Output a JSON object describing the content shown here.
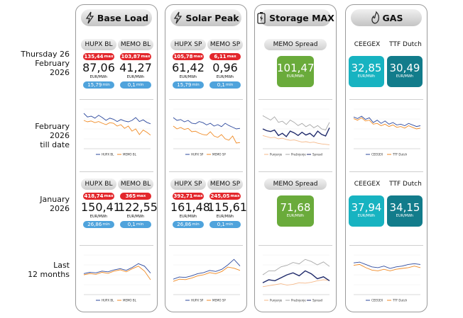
{
  "row_labels": [
    [
      "Thursday 26",
      "February",
      "2026"
    ],
    [
      "February",
      "2026",
      "till date"
    ],
    [
      "January",
      "2026"
    ],
    [
      "Last",
      "12 months"
    ]
  ],
  "panels": [
    {
      "title": "Base Load",
      "kind": "prices",
      "daily": {
        "markets": [
          {
            "name": "HUPX BL",
            "max": "135,44",
            "max_label": "max",
            "value": "87,06",
            "unit": "EUR/MWh",
            "min": "15,79",
            "min_label": "min"
          },
          {
            "name": "MEMO BL",
            "max": "103,87",
            "max_label": "max",
            "value": "41,27",
            "unit": "EUR/MWh",
            "min": "0,1",
            "min_label": "min"
          }
        ]
      },
      "month_chart": {
        "type": "line",
        "ylim": [
          0,
          140
        ],
        "series": [
          {
            "name": "HUPX BL",
            "color": "#2e4a9e",
            "values": [
              125,
              112,
              115,
              108,
              118,
              110,
              100,
              108,
              104,
              96,
              103,
              98,
              95,
              100,
              110,
              96,
              102,
              93,
              88
            ]
          },
          {
            "name": "MEMO BL",
            "color": "#f08a24",
            "values": [
              100,
              95,
              98,
              92,
              96,
              90,
              85,
              92,
              90,
              80,
              85,
              72,
              80,
              62,
              70,
              50,
              66,
              58,
              48
            ]
          }
        ]
      },
      "monthly": {
        "markets": [
          {
            "name": "HUPX BL",
            "max": "418,74",
            "max_label": "max",
            "value": "150,41",
            "unit": "EUR/MWh",
            "min": "26,86",
            "min_label": "min"
          },
          {
            "name": "MEMO BL",
            "max": "365",
            "max_label": "max",
            "value": "122,55",
            "unit": "EUR/MWh",
            "min": "0,1",
            "min_label": "min"
          }
        ]
      },
      "year_chart": {
        "type": "line",
        "ylim": [
          0,
          160
        ],
        "series": [
          {
            "name": "HUPX BL",
            "color": "#2e4a9e",
            "values": [
              85,
              90,
              88,
              95,
              92,
              100,
              105,
              98,
              110,
              125,
              115,
              87
            ]
          },
          {
            "name": "MEMO BL",
            "color": "#f08a24",
            "values": [
              80,
              85,
              82,
              90,
              86,
              95,
              100,
              92,
              105,
              115,
              95,
              60
            ]
          }
        ]
      }
    },
    {
      "title": "Solar Peak",
      "kind": "prices",
      "daily": {
        "markets": [
          {
            "name": "HUPX SP",
            "max": "105,78",
            "max_label": "max",
            "value": "61,42",
            "unit": "EUR/MWh",
            "min": "15,79",
            "min_label": "min"
          },
          {
            "name": "MEMO SP",
            "max": "6,11",
            "max_label": "max",
            "value": "0,96",
            "unit": "EUR/MWh",
            "min": "0,1",
            "min_label": "min"
          }
        ]
      },
      "month_chart": {
        "type": "line",
        "ylim": [
          0,
          140
        ],
        "series": [
          {
            "name": "HUPX SP",
            "color": "#2e4a9e",
            "values": [
              110,
              100,
              103,
              95,
              100,
              90,
              88,
              96,
              92,
              84,
              90,
              80,
              85,
              78,
              90,
              82,
              76,
              70,
              72
            ]
          },
          {
            "name": "MEMO SP",
            "color": "#f08a24",
            "values": [
              80,
              70,
              75,
              68,
              72,
              60,
              62,
              55,
              50,
              48,
              60,
              45,
              40,
              50,
              35,
              30,
              45,
              20,
              22
            ]
          }
        ]
      },
      "monthly": {
        "markets": [
          {
            "name": "HUPX SP",
            "max": "392,71",
            "max_label": "max",
            "value": "161,48",
            "unit": "EUR/MWh",
            "min": "26,86",
            "min_label": "min"
          },
          {
            "name": "MEMO SP",
            "max": "245,05",
            "max_label": "max",
            "value": "115,61",
            "unit": "EUR/MWh",
            "min": "0,1",
            "min_label": "min"
          }
        ]
      },
      "year_chart": {
        "type": "line",
        "ylim": [
          0,
          180
        ],
        "series": [
          {
            "name": "HUPX SP",
            "color": "#2e4a9e",
            "values": [
              70,
              80,
              78,
              85,
              95,
              100,
              110,
              105,
              115,
              135,
              160,
              130
            ]
          },
          {
            "name": "MEMO SP",
            "color": "#f08a24",
            "values": [
              60,
              70,
              68,
              75,
              85,
              90,
              100,
              95,
              105,
              125,
              120,
              110
            ]
          }
        ]
      }
    },
    {
      "title": "Storage MAX",
      "kind": "spread",
      "daily": {
        "name": "MEMO Spread",
        "value": "101,47",
        "unit": "EUR/MWh"
      },
      "month_chart": {
        "type": "line",
        "ylim": [
          0,
          180
        ],
        "series": [
          {
            "name": "Punjenje",
            "color": "#f5b98a",
            "values": [
              60,
              55,
              50,
              52,
              45,
              48,
              42,
              38,
              40,
              35,
              30,
              32,
              28,
              30,
              25,
              22,
              20,
              18
            ]
          },
          {
            "name": "Pražnjenje",
            "color": "#a8a8a8",
            "values": [
              150,
              140,
              130,
              145,
              120,
              125,
              110,
              130,
              120,
              105,
              115,
              100,
              110,
              95,
              105,
              90,
              85,
              120
            ]
          },
          {
            "name": "Spread",
            "color": "#1f2a6b",
            "values": [
              90,
              82,
              78,
              85,
              60,
              70,
              55,
              80,
              72,
              60,
              75,
              62,
              70,
              55,
              80,
              65,
              58,
              95
            ]
          }
        ]
      },
      "monthly": {
        "name": "MEMO Spread",
        "value": "71,68",
        "unit": "EUR/MWh"
      },
      "year_chart": {
        "type": "line",
        "ylim": [
          0,
          200
        ],
        "series": [
          {
            "name": "Punjenje",
            "color": "#f5b98a",
            "values": [
              40,
              45,
              50,
              55,
              48,
              52,
              60,
              58,
              62,
              70,
              75,
              72
            ]
          },
          {
            "name": "Pražnjenje",
            "color": "#a8a8a8",
            "values": [
              100,
              120,
              120,
              140,
              148,
              162,
              155,
              178,
              167,
              150,
              165,
              142
            ]
          },
          {
            "name": "Spread",
            "color": "#1f2a6b",
            "values": [
              60,
              75,
              70,
              85,
              100,
              110,
              95,
              120,
              105,
              80,
              90,
              70
            ]
          }
        ]
      }
    },
    {
      "title": "GAS",
      "kind": "gas",
      "daily": {
        "markets": [
          {
            "name": "CEEGEX",
            "value": "32,85",
            "unit": "EUR/MWh",
            "color": "#17b3c1"
          },
          {
            "name": "TTF Dutch",
            "value": "30,49",
            "unit": "EUR/MWh",
            "color": "#127c8b"
          }
        ]
      },
      "month_chart": {
        "type": "line",
        "ylim": [
          0,
          50
        ],
        "series": [
          {
            "name": "CEEGEX",
            "color": "#2e4a9e",
            "values": [
              40,
              38,
              41,
              37,
              39,
              33,
              36,
              32,
              35,
              31,
              33,
              30,
              31,
              29,
              32,
              30,
              28,
              29
            ]
          },
          {
            "name": "TTF Dutch",
            "color": "#f08a24",
            "values": [
              38,
              36,
              39,
              35,
              36,
              31,
              32,
              29,
              31,
              28,
              30,
              27,
              28,
              26,
              29,
              27,
              25,
              26
            ]
          }
        ]
      },
      "monthly": {
        "markets": [
          {
            "name": "CEEGEX",
            "value": "37,94",
            "unit": "EUR/MWh",
            "color": "#17b3c1"
          },
          {
            "name": "TTF Dutch",
            "value": "34,15",
            "unit": "EUR/MWh",
            "color": "#127c8b"
          }
        ]
      },
      "year_chart": {
        "type": "line",
        "ylim": [
          0,
          50
        ],
        "series": [
          {
            "name": "CEEGEX",
            "color": "#2e4a9e",
            "values": [
              40,
              41,
              38,
              35,
              34,
              36,
              33,
              35,
              36,
              38,
              39,
              38
            ]
          },
          {
            "name": "TTF Dutch",
            "color": "#f08a24",
            "values": [
              37,
              38,
              34,
              31,
              30,
              32,
              30,
              32,
              33,
              34,
              36,
              34
            ]
          }
        ]
      }
    }
  ]
}
